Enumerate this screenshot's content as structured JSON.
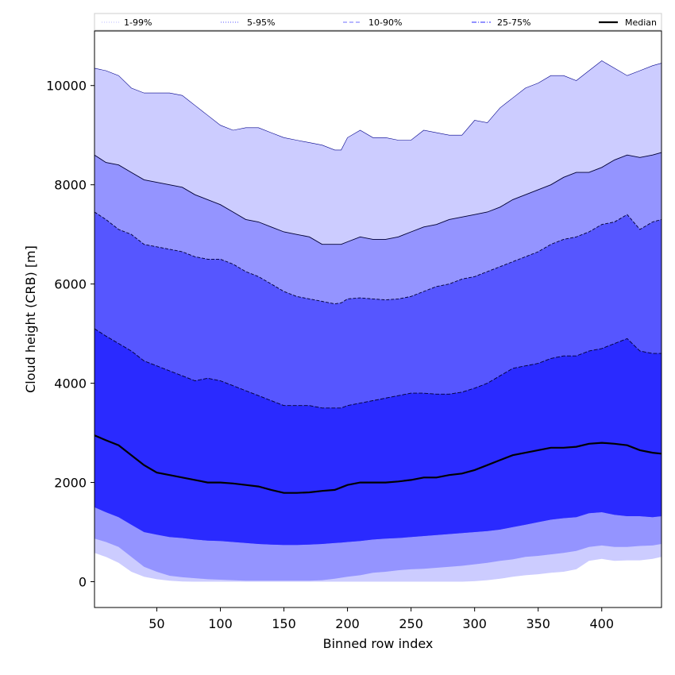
{
  "chart_data": {
    "type": "area",
    "title": "",
    "xlabel": "Binned row index",
    "ylabel": "Cloud height (CRB) [m]",
    "xlim": [
      1,
      447
    ],
    "ylim": [
      -520,
      11100
    ],
    "xticks": [
      50,
      100,
      150,
      200,
      250,
      300,
      350,
      400
    ],
    "yticks": [
      0,
      2000,
      4000,
      6000,
      8000,
      10000
    ],
    "grid": false,
    "legend": {
      "placement": "top",
      "entries": [
        {
          "label": "1-99%",
          "style": "dotted",
          "color": "#c8c8ff"
        },
        {
          "label": "5-95%",
          "style": "dotted",
          "color": "#7878ff"
        },
        {
          "label": "10-90%",
          "style": "dashed",
          "color": "#8c8cff"
        },
        {
          "label": "25-75%",
          "style": "dashdot",
          "color": "#5050ff"
        },
        {
          "label": "Median",
          "style": "solid",
          "color": "#000000"
        }
      ]
    },
    "x": [
      1,
      10,
      20,
      30,
      40,
      50,
      60,
      70,
      80,
      90,
      100,
      110,
      120,
      130,
      140,
      150,
      160,
      170,
      180,
      190,
      195,
      200,
      210,
      220,
      230,
      240,
      250,
      260,
      270,
      280,
      290,
      300,
      310,
      320,
      330,
      340,
      350,
      360,
      370,
      380,
      390,
      400,
      410,
      420,
      430,
      440,
      447
    ],
    "bands": [
      {
        "name": "1-99%",
        "color": "#ccccff",
        "upper": [
          10350,
          10300,
          10200,
          9950,
          9850,
          9850,
          9850,
          9800,
          9600,
          9400,
          9200,
          9100,
          9150,
          9150,
          9050,
          8950,
          8900,
          8850,
          8800,
          8700,
          8700,
          8950,
          9100,
          8950,
          8950,
          8900,
          8900,
          9100,
          9050,
          9000,
          9000,
          9300,
          9250,
          9550,
          9750,
          9950,
          10050,
          10200,
          10200,
          10100,
          10300,
          10500,
          10350,
          10200,
          10300,
          10400,
          10450
        ],
        "lower": [
          580,
          500,
          380,
          200,
          100,
          50,
          20,
          5,
          0,
          0,
          0,
          0,
          0,
          0,
          0,
          0,
          0,
          0,
          0,
          0,
          0,
          0,
          0,
          0,
          0,
          0,
          0,
          0,
          0,
          0,
          0,
          10,
          30,
          60,
          100,
          130,
          150,
          180,
          200,
          250,
          420,
          460,
          420,
          430,
          430,
          460,
          500
        ]
      },
      {
        "name": "5-95%",
        "color": "#9494ff",
        "upper": [
          8600,
          8450,
          8400,
          8250,
          8100,
          8050,
          8000,
          7950,
          7800,
          7700,
          7600,
          7450,
          7300,
          7250,
          7150,
          7050,
          7000,
          6950,
          6800,
          6800,
          6800,
          6850,
          6950,
          6900,
          6900,
          6950,
          7050,
          7150,
          7200,
          7300,
          7350,
          7400,
          7450,
          7550,
          7700,
          7800,
          7900,
          8000,
          8150,
          8250,
          8250,
          8350,
          8500,
          8600,
          8550,
          8600,
          8650
        ],
        "lower": [
          870,
          800,
          700,
          500,
          300,
          200,
          120,
          90,
          70,
          50,
          40,
          30,
          20,
          20,
          20,
          20,
          20,
          20,
          30,
          60,
          80,
          100,
          130,
          180,
          200,
          230,
          250,
          260,
          280,
          300,
          320,
          350,
          380,
          420,
          450,
          500,
          520,
          550,
          580,
          620,
          700,
          730,
          700,
          700,
          720,
          730,
          760
        ]
      },
      {
        "name": "10-90%",
        "color": "#5656ff",
        "upper": [
          7450,
          7300,
          7100,
          7000,
          6800,
          6750,
          6700,
          6650,
          6550,
          6500,
          6500,
          6400,
          6250,
          6150,
          6000,
          5850,
          5750,
          5700,
          5650,
          5600,
          5620,
          5700,
          5720,
          5700,
          5680,
          5700,
          5750,
          5850,
          5950,
          6000,
          6100,
          6150,
          6250,
          6350,
          6450,
          6550,
          6650,
          6800,
          6900,
          6950,
          7050,
          7200,
          7250,
          7400,
          7100,
          7250,
          7300
        ],
        "lower": [
          1500,
          1400,
          1300,
          1150,
          1000,
          950,
          900,
          880,
          850,
          830,
          820,
          800,
          780,
          760,
          750,
          740,
          740,
          750,
          760,
          780,
          790,
          800,
          820,
          850,
          870,
          880,
          900,
          920,
          940,
          960,
          980,
          1000,
          1020,
          1050,
          1100,
          1150,
          1200,
          1250,
          1280,
          1300,
          1380,
          1400,
          1350,
          1320,
          1320,
          1300,
          1320
        ]
      },
      {
        "name": "25-75%",
        "color": "#2a2aff",
        "upper": [
          5100,
          4950,
          4800,
          4650,
          4450,
          4350,
          4250,
          4150,
          4050,
          4100,
          4050,
          3950,
          3850,
          3750,
          3650,
          3550,
          3550,
          3550,
          3500,
          3500,
          3500,
          3550,
          3600,
          3650,
          3700,
          3750,
          3800,
          3800,
          3780,
          3780,
          3820,
          3900,
          4000,
          4150,
          4300,
          4350,
          4400,
          4500,
          4550,
          4550,
          4650,
          4700,
          4800,
          4900,
          4650,
          4600,
          4600
        ]
      }
    ],
    "series": [
      {
        "name": "Median",
        "color": "#000000",
        "values": [
          2950,
          2850,
          2750,
          2550,
          2350,
          2200,
          2150,
          2100,
          2050,
          2000,
          2000,
          1980,
          1950,
          1920,
          1850,
          1790,
          1790,
          1800,
          1830,
          1850,
          1900,
          1950,
          2000,
          2000,
          2000,
          2020,
          2050,
          2100,
          2100,
          2150,
          2180,
          2250,
          2350,
          2450,
          2550,
          2600,
          2650,
          2700,
          2700,
          2720,
          2780,
          2800,
          2780,
          2750,
          2650,
          2600,
          2580
        ]
      }
    ]
  }
}
